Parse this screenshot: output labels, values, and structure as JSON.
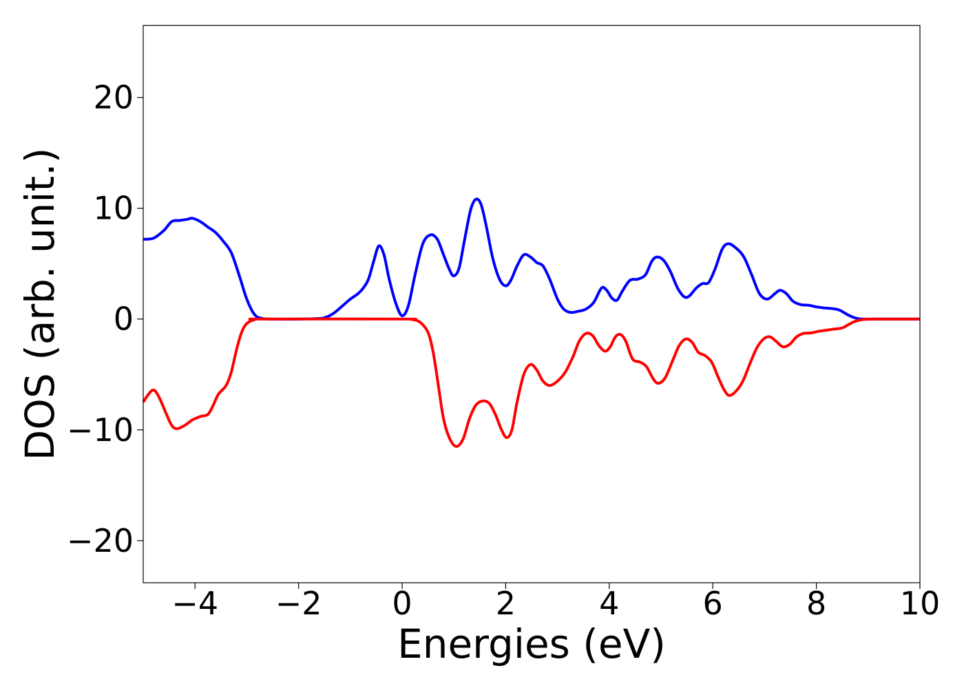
{
  "chart_data": {
    "type": "line",
    "title": "",
    "xlabel": "Energies (eV)",
    "ylabel": "DOS (arb. unit.)",
    "xlim": [
      -5,
      10
    ],
    "ylim": [
      -23.8,
      26.5
    ],
    "xticks": [
      -4,
      -2,
      0,
      2,
      4,
      6,
      8,
      10
    ],
    "xtick_labels": [
      "−4",
      "−2",
      "0",
      "2",
      "4",
      "6",
      "8",
      "10"
    ],
    "yticks": [
      20,
      10,
      0,
      -10,
      -20
    ],
    "ytick_labels": [
      "20",
      "10",
      "0",
      "−10",
      "−20"
    ],
    "grid": false,
    "legend": "none",
    "series": [
      {
        "color": "#0000ff",
        "points": [
          [
            -5.0,
            7.2
          ],
          [
            -4.8,
            7.3
          ],
          [
            -4.6,
            8.0
          ],
          [
            -4.45,
            8.8
          ],
          [
            -4.3,
            8.9
          ],
          [
            -4.15,
            9.0
          ],
          [
            -4.05,
            9.1
          ],
          [
            -3.9,
            8.8
          ],
          [
            -3.75,
            8.3
          ],
          [
            -3.6,
            7.8
          ],
          [
            -3.45,
            7.0
          ],
          [
            -3.3,
            6.0
          ],
          [
            -3.15,
            4.0
          ],
          [
            -3.0,
            1.8
          ],
          [
            -2.85,
            0.4
          ],
          [
            -2.7,
            0.05
          ],
          [
            -2.5,
            0.0
          ],
          [
            -2.0,
            0.0
          ],
          [
            -1.6,
            0.05
          ],
          [
            -1.45,
            0.2
          ],
          [
            -1.3,
            0.6
          ],
          [
            -1.15,
            1.2
          ],
          [
            -1.0,
            1.8
          ],
          [
            -0.85,
            2.3
          ],
          [
            -0.75,
            2.8
          ],
          [
            -0.65,
            3.6
          ],
          [
            -0.55,
            5.2
          ],
          [
            -0.45,
            6.6
          ],
          [
            -0.35,
            5.8
          ],
          [
            -0.25,
            3.6
          ],
          [
            -0.12,
            1.4
          ],
          [
            0.0,
            0.3
          ],
          [
            0.12,
            1.2
          ],
          [
            0.25,
            4.0
          ],
          [
            0.4,
            6.8
          ],
          [
            0.55,
            7.6
          ],
          [
            0.68,
            7.2
          ],
          [
            0.8,
            5.8
          ],
          [
            0.92,
            4.4
          ],
          [
            1.0,
            3.9
          ],
          [
            1.1,
            4.6
          ],
          [
            1.2,
            7.0
          ],
          [
            1.32,
            9.8
          ],
          [
            1.42,
            10.8
          ],
          [
            1.52,
            10.4
          ],
          [
            1.62,
            8.5
          ],
          [
            1.75,
            5.5
          ],
          [
            1.88,
            3.6
          ],
          [
            2.0,
            3.0
          ],
          [
            2.1,
            3.5
          ],
          [
            2.22,
            4.8
          ],
          [
            2.35,
            5.8
          ],
          [
            2.48,
            5.6
          ],
          [
            2.6,
            5.1
          ],
          [
            2.72,
            4.8
          ],
          [
            2.85,
            3.6
          ],
          [
            3.0,
            1.8
          ],
          [
            3.12,
            0.9
          ],
          [
            3.25,
            0.6
          ],
          [
            3.4,
            0.7
          ],
          [
            3.55,
            0.9
          ],
          [
            3.7,
            1.5
          ],
          [
            3.85,
            2.8
          ],
          [
            3.95,
            2.6
          ],
          [
            4.05,
            1.9
          ],
          [
            4.15,
            1.7
          ],
          [
            4.25,
            2.5
          ],
          [
            4.4,
            3.5
          ],
          [
            4.55,
            3.6
          ],
          [
            4.7,
            4.0
          ],
          [
            4.82,
            5.2
          ],
          [
            4.92,
            5.6
          ],
          [
            5.05,
            5.3
          ],
          [
            5.18,
            4.3
          ],
          [
            5.32,
            2.8
          ],
          [
            5.45,
            2.0
          ],
          [
            5.55,
            2.1
          ],
          [
            5.68,
            2.8
          ],
          [
            5.8,
            3.2
          ],
          [
            5.92,
            3.3
          ],
          [
            6.05,
            4.6
          ],
          [
            6.18,
            6.3
          ],
          [
            6.3,
            6.8
          ],
          [
            6.45,
            6.4
          ],
          [
            6.6,
            5.6
          ],
          [
            6.75,
            4.0
          ],
          [
            6.9,
            2.3
          ],
          [
            7.05,
            1.8
          ],
          [
            7.2,
            2.3
          ],
          [
            7.3,
            2.6
          ],
          [
            7.42,
            2.3
          ],
          [
            7.55,
            1.6
          ],
          [
            7.7,
            1.3
          ],
          [
            7.85,
            1.25
          ],
          [
            8.0,
            1.1
          ],
          [
            8.15,
            1.0
          ],
          [
            8.3,
            0.95
          ],
          [
            8.45,
            0.8
          ],
          [
            8.6,
            0.4
          ],
          [
            8.75,
            0.1
          ],
          [
            8.9,
            0.0
          ],
          [
            9.2,
            0.0
          ],
          [
            10.0,
            0.0
          ]
        ]
      },
      {
        "color": "#ff0000",
        "points": [
          [
            -5.0,
            -7.5
          ],
          [
            -4.9,
            -6.8
          ],
          [
            -4.8,
            -6.4
          ],
          [
            -4.7,
            -7.0
          ],
          [
            -4.55,
            -8.6
          ],
          [
            -4.45,
            -9.6
          ],
          [
            -4.35,
            -9.9
          ],
          [
            -4.2,
            -9.6
          ],
          [
            -4.05,
            -9.1
          ],
          [
            -3.9,
            -8.8
          ],
          [
            -3.75,
            -8.6
          ],
          [
            -3.65,
            -7.8
          ],
          [
            -3.55,
            -6.8
          ],
          [
            -3.4,
            -6.0
          ],
          [
            -3.3,
            -4.8
          ],
          [
            -3.2,
            -2.8
          ],
          [
            -3.1,
            -1.2
          ],
          [
            -3.0,
            -0.4
          ],
          [
            -2.85,
            -0.05
          ],
          [
            -2.7,
            0.0
          ],
          [
            0.0,
            0.0
          ],
          [
            0.2,
            -0.05
          ],
          [
            0.35,
            -0.3
          ],
          [
            0.5,
            -1.2
          ],
          [
            0.6,
            -3.0
          ],
          [
            0.7,
            -6.0
          ],
          [
            0.8,
            -9.0
          ],
          [
            0.92,
            -10.8
          ],
          [
            1.05,
            -11.5
          ],
          [
            1.18,
            -10.8
          ],
          [
            1.3,
            -9.0
          ],
          [
            1.42,
            -7.8
          ],
          [
            1.55,
            -7.4
          ],
          [
            1.68,
            -7.6
          ],
          [
            1.8,
            -8.6
          ],
          [
            1.92,
            -10.0
          ],
          [
            2.02,
            -10.7
          ],
          [
            2.12,
            -10.0
          ],
          [
            2.22,
            -7.5
          ],
          [
            2.35,
            -5.0
          ],
          [
            2.48,
            -4.1
          ],
          [
            2.6,
            -4.6
          ],
          [
            2.72,
            -5.6
          ],
          [
            2.85,
            -6.0
          ],
          [
            3.0,
            -5.6
          ],
          [
            3.15,
            -4.8
          ],
          [
            3.3,
            -3.4
          ],
          [
            3.42,
            -2.0
          ],
          [
            3.55,
            -1.3
          ],
          [
            3.68,
            -1.5
          ],
          [
            3.8,
            -2.4
          ],
          [
            3.92,
            -2.9
          ],
          [
            4.02,
            -2.5
          ],
          [
            4.12,
            -1.6
          ],
          [
            4.22,
            -1.4
          ],
          [
            4.32,
            -2.0
          ],
          [
            4.45,
            -3.6
          ],
          [
            4.6,
            -3.9
          ],
          [
            4.72,
            -4.3
          ],
          [
            4.85,
            -5.4
          ],
          [
            4.95,
            -5.8
          ],
          [
            5.08,
            -5.3
          ],
          [
            5.22,
            -3.8
          ],
          [
            5.35,
            -2.4
          ],
          [
            5.48,
            -1.8
          ],
          [
            5.6,
            -2.1
          ],
          [
            5.72,
            -3.0
          ],
          [
            5.85,
            -3.3
          ],
          [
            5.98,
            -3.9
          ],
          [
            6.1,
            -5.2
          ],
          [
            6.22,
            -6.4
          ],
          [
            6.32,
            -6.9
          ],
          [
            6.45,
            -6.5
          ],
          [
            6.58,
            -5.6
          ],
          [
            6.72,
            -4.0
          ],
          [
            6.85,
            -2.6
          ],
          [
            6.98,
            -1.8
          ],
          [
            7.1,
            -1.6
          ],
          [
            7.22,
            -2.0
          ],
          [
            7.35,
            -2.5
          ],
          [
            7.48,
            -2.3
          ],
          [
            7.62,
            -1.6
          ],
          [
            7.75,
            -1.3
          ],
          [
            7.9,
            -1.25
          ],
          [
            8.05,
            -1.1
          ],
          [
            8.2,
            -1.0
          ],
          [
            8.35,
            -0.9
          ],
          [
            8.5,
            -0.8
          ],
          [
            8.62,
            -0.5
          ],
          [
            8.75,
            -0.2
          ],
          [
            8.9,
            -0.05
          ],
          [
            9.1,
            0.0
          ],
          [
            10.0,
            0.0
          ]
        ]
      }
    ]
  }
}
